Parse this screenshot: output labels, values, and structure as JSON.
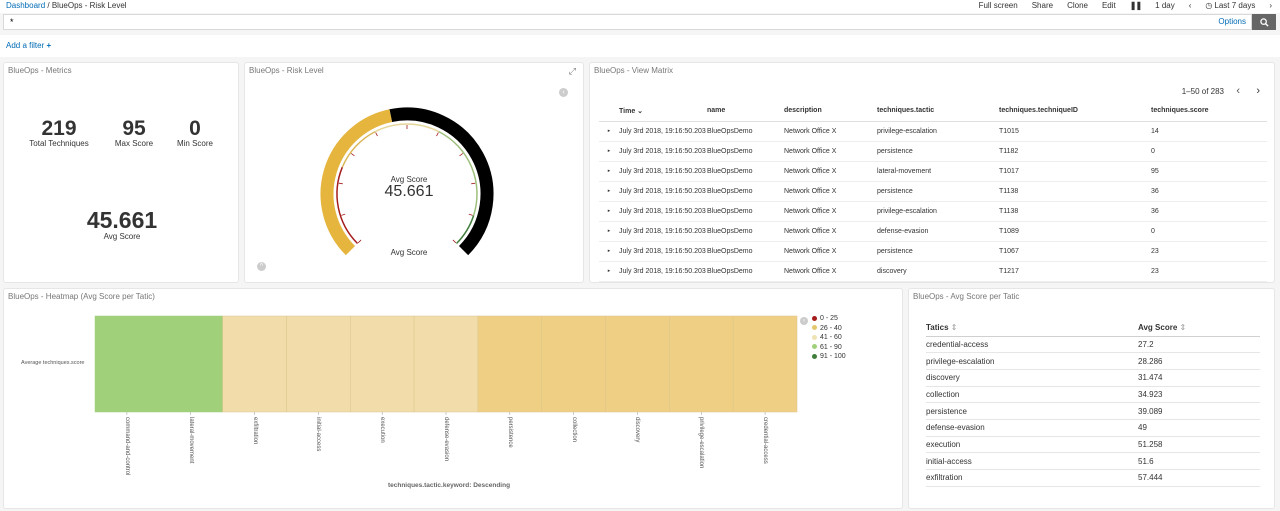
{
  "breadcrumb": {
    "root": "Dashboard",
    "separator": "/",
    "current": "BlueOps - Risk Level"
  },
  "toolbar": {
    "full_screen": "Full screen",
    "share": "Share",
    "clone": "Clone",
    "edit": "Edit",
    "interval": "1 day",
    "time_range": "Last 7 days"
  },
  "query": {
    "value": "*",
    "options_label": "Options"
  },
  "filters": {
    "add_label": "Add a filter"
  },
  "metrics_panel": {
    "title": "BlueOps - Metrics",
    "total_value": "219",
    "total_label": "Total Techniques",
    "max_value": "95",
    "max_label": "Max Score",
    "min_value": "0",
    "min_label": "Min Score",
    "avg_value": "45.661",
    "avg_label": "Avg Score"
  },
  "gauge_panel": {
    "title": "BlueOps - Risk Level",
    "label": "Avg Score",
    "value_text": "45.661",
    "value": 45.661,
    "min": 0,
    "max": 100,
    "footer": "Avg Score",
    "fill_color": "#e5b53e",
    "track_color": "#000000"
  },
  "matrix_panel": {
    "title": "BlueOps - View Matrix",
    "pagination": "1–50 of 283",
    "columns": [
      "Time",
      "name",
      "description",
      "techniques.tactic",
      "techniques.techniqueID",
      "techniques.score"
    ],
    "rows": [
      [
        "July 3rd 2018, 19:16:50.203",
        "BlueOpsDemo",
        "Network Office X",
        "privilege-escalation",
        "T1015",
        "14"
      ],
      [
        "July 3rd 2018, 19:16:50.203",
        "BlueOpsDemo",
        "Network Office X",
        "persistence",
        "T1182",
        "0"
      ],
      [
        "July 3rd 2018, 19:16:50.203",
        "BlueOpsDemo",
        "Network Office X",
        "lateral-movement",
        "T1017",
        "95"
      ],
      [
        "July 3rd 2018, 19:16:50.203",
        "BlueOpsDemo",
        "Network Office X",
        "persistence",
        "T1138",
        "36"
      ],
      [
        "July 3rd 2018, 19:16:50.203",
        "BlueOpsDemo",
        "Network Office X",
        "privilege-escalation",
        "T1138",
        "36"
      ],
      [
        "July 3rd 2018, 19:16:50.203",
        "BlueOpsDemo",
        "Network Office X",
        "defense-evasion",
        "T1089",
        "0"
      ],
      [
        "July 3rd 2018, 19:16:50.203",
        "BlueOpsDemo",
        "Network Office X",
        "persistence",
        "T1067",
        "23"
      ],
      [
        "July 3rd 2018, 19:16:50.203",
        "BlueOpsDemo",
        "Network Office X",
        "discovery",
        "T1217",
        "23"
      ]
    ]
  },
  "heatmap_panel": {
    "title": "BlueOps - Heatmap (Avg Score per Tatic)",
    "row_label": "Average techniques.score",
    "x_title": "techniques.tactic.keyword: Descending",
    "categories": [
      "command-and-control",
      "lateral-movement",
      "exfiltration",
      "initial-access",
      "execution",
      "defense-evasion",
      "persistence",
      "collection",
      "discovery",
      "privilege-escalation",
      "credential-access"
    ],
    "cell_colors": [
      "#a0d07a",
      "#a0d07a",
      "#f1dcaa",
      "#f1dcaa",
      "#f1dcaa",
      "#f1dcaa",
      "#efcf83",
      "#efcf83",
      "#efcf83",
      "#efcf83",
      "#efcf83"
    ],
    "legend": [
      {
        "label": "0 - 25",
        "color": "#a51c1c"
      },
      {
        "label": "26 - 40",
        "color": "#e5c86e"
      },
      {
        "label": "41 - 60",
        "color": "#efe3b4"
      },
      {
        "label": "61 - 90",
        "color": "#a0d07a"
      },
      {
        "label": "91 - 100",
        "color": "#3f7d3a"
      }
    ]
  },
  "avg_table_panel": {
    "title": "BlueOps - Avg Score per Tatic",
    "columns": [
      "Tatics",
      "Avg Score"
    ],
    "rows": [
      [
        "credential-access",
        "27.2"
      ],
      [
        "privilege-escalation",
        "28.286"
      ],
      [
        "discovery",
        "31.474"
      ],
      [
        "collection",
        "34.923"
      ],
      [
        "persistence",
        "39.089"
      ],
      [
        "defense-evasion",
        "49"
      ],
      [
        "execution",
        "51.258"
      ],
      [
        "initial-access",
        "51.6"
      ],
      [
        "exfiltration",
        "57.444"
      ]
    ]
  }
}
